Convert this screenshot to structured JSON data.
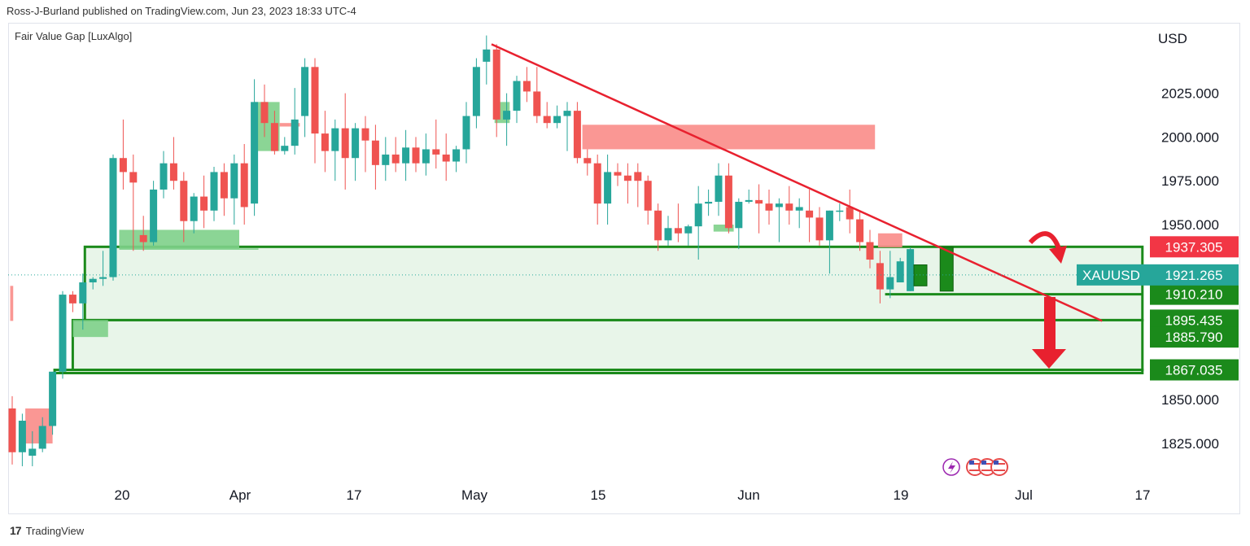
{
  "header": {
    "publisher_line": "Ross-J-Burland published on TradingView.com, Jun 23, 2023 18:33 UTC-4"
  },
  "indicator": {
    "label": "Fair Value Gap [LuxAlgo]"
  },
  "footer": {
    "brand": "TradingView"
  },
  "colors": {
    "up": "#26a69a",
    "down": "#ef5350",
    "trend": "#e8212f",
    "box": "#1b8a1b",
    "box_fill": "#e8f5e9",
    "fvg_up": "#7ed08a",
    "fvg_down": "#f98c88",
    "price_red": "#f23645",
    "price_green": "#1b8a1b",
    "xau_tag": "#26a69a"
  },
  "chart_data": {
    "type": "candlestick",
    "currency": "USD",
    "symbol": "XAUUSD",
    "last_price": "1921.265",
    "price_labels": [
      {
        "value": 1937.305,
        "text": "1937.305",
        "color": "red"
      },
      {
        "value": 1910.21,
        "text": "1910.210",
        "color": "green"
      },
      {
        "value": 1895.435,
        "text": "1895.435",
        "color": "green"
      },
      {
        "value": 1885.79,
        "text": "1885.790",
        "color": "green"
      },
      {
        "value": 1867.035,
        "text": "1867.035",
        "color": "green"
      }
    ],
    "y_ticks": [
      "1825.000",
      "1850.000",
      "1950.000",
      "1975.000",
      "2000.000",
      "2025.000"
    ],
    "y_tick_values": [
      1825,
      1850,
      1950,
      1975,
      2000,
      2025
    ],
    "x_ticks": [
      "20",
      "Apr",
      "17",
      "May",
      "15",
      "Jun",
      "19",
      "Jul",
      "17"
    ],
    "ohlc": [
      [
        1845,
        1852,
        1813,
        1820
      ],
      [
        1820,
        1842,
        1812,
        1838
      ],
      [
        1818,
        1832,
        1812,
        1822
      ],
      [
        1822,
        1840,
        1820,
        1835
      ],
      [
        1835,
        1865,
        1830,
        1866
      ],
      [
        1866,
        1912,
        1862,
        1910
      ],
      [
        1910,
        1912,
        1900,
        1905
      ],
      [
        1905,
        1922,
        1890,
        1917
      ],
      [
        1917,
        1920,
        1913,
        1919
      ],
      [
        1919,
        1935,
        1915,
        1920
      ],
      [
        1920,
        1990,
        1918,
        1988
      ],
      [
        1988,
        2010,
        1970,
        1980
      ],
      [
        1980,
        1990,
        1935,
        1974
      ],
      [
        1944,
        1955,
        1935,
        1940
      ],
      [
        1940,
        1975,
        1938,
        1970
      ],
      [
        1970,
        1992,
        1965,
        1985
      ],
      [
        1985,
        2000,
        1970,
        1975
      ],
      [
        1975,
        1980,
        1940,
        1952
      ],
      [
        1952,
        1968,
        1945,
        1966
      ],
      [
        1966,
        1978,
        1948,
        1958
      ],
      [
        1958,
        1983,
        1952,
        1980
      ],
      [
        1980,
        1985,
        1955,
        1965
      ],
      [
        1965,
        1990,
        1950,
        1985
      ],
      [
        1985,
        1996,
        1950,
        1960
      ],
      [
        1962,
        2033,
        1955,
        2020
      ],
      [
        2020,
        2030,
        2000,
        2008
      ],
      [
        2008,
        2015,
        1990,
        1992
      ],
      [
        1992,
        2000,
        1990,
        1995
      ],
      [
        1995,
        2028,
        1990,
        2010
      ],
      [
        2012,
        2045,
        2000,
        2040
      ],
      [
        2040,
        2045,
        1985,
        2002
      ],
      [
        2002,
        2015,
        1980,
        1992
      ],
      [
        1992,
        2010,
        1975,
        2005
      ],
      [
        2005,
        2025,
        1970,
        1988
      ],
      [
        1988,
        2008,
        1975,
        2005
      ],
      [
        2005,
        2012,
        1980,
        1998
      ],
      [
        1998,
        2007,
        1970,
        1984
      ],
      [
        1984,
        2000,
        1975,
        1990
      ],
      [
        1990,
        2000,
        1980,
        1985
      ],
      [
        1985,
        2004,
        1975,
        1994
      ],
      [
        1994,
        2000,
        1980,
        1985
      ],
      [
        1985,
        2002,
        1978,
        1993
      ],
      [
        1993,
        2010,
        1982,
        1990
      ],
      [
        1990,
        2002,
        1975,
        1986
      ],
      [
        1986,
        1995,
        1980,
        1993
      ],
      [
        1993,
        2020,
        1985,
        2012
      ],
      [
        2012,
        2045,
        2005,
        2040
      ],
      [
        2043,
        2058,
        2030,
        2050
      ],
      [
        2050,
        2053,
        2000,
        2010
      ],
      [
        2010,
        2025,
        1995,
        2015
      ],
      [
        2015,
        2035,
        2008,
        2032
      ],
      [
        2032,
        2040,
        2020,
        2026
      ],
      [
        2026,
        2040,
        2008,
        2012
      ],
      [
        2012,
        2020,
        2005,
        2008
      ],
      [
        2008,
        2018,
        2005,
        2012
      ],
      [
        2012,
        2020,
        1992,
        2015
      ],
      [
        2015,
        2020,
        1985,
        1988
      ],
      [
        1988,
        1993,
        1978,
        1985
      ],
      [
        1985,
        1990,
        1950,
        1962
      ],
      [
        1962,
        1990,
        1950,
        1980
      ],
      [
        1980,
        1985,
        1972,
        1978
      ],
      [
        1978,
        1985,
        1962,
        1975
      ],
      [
        1980,
        1985,
        1960,
        1975
      ],
      [
        1975,
        1978,
        1950,
        1958
      ],
      [
        1958,
        1962,
        1935,
        1941
      ],
      [
        1941,
        1955,
        1938,
        1948
      ],
      [
        1948,
        1962,
        1940,
        1945
      ],
      [
        1945,
        1950,
        1938,
        1949
      ],
      [
        1949,
        1972,
        1930,
        1962
      ],
      [
        1962,
        1970,
        1955,
        1963
      ],
      [
        1963,
        1985,
        1955,
        1978
      ],
      [
        1978,
        1985,
        1945,
        1948
      ],
      [
        1948,
        1965,
        1936,
        1963
      ],
      [
        1963,
        1970,
        1962,
        1964
      ],
      [
        1964,
        1973,
        1945,
        1962
      ],
      [
        1962,
        1970,
        1950,
        1958
      ],
      [
        1960,
        1965,
        1940,
        1962
      ],
      [
        1962,
        1972,
        1950,
        1958
      ],
      [
        1958,
        1965,
        1948,
        1960
      ],
      [
        1958,
        1970,
        1940,
        1954
      ],
      [
        1954,
        1960,
        1938,
        1941
      ],
      [
        1941,
        1958,
        1922,
        1958
      ],
      [
        1958,
        1962,
        1952,
        1958
      ],
      [
        1960,
        1970,
        1945,
        1953
      ],
      [
        1953,
        1958,
        1935,
        1940
      ],
      [
        1940,
        1947,
        1925,
        1930
      ],
      [
        1928,
        1935,
        1905,
        1913
      ],
      [
        1913,
        1935,
        1908,
        1920
      ],
      [
        1917,
        1931,
        1917,
        1929
      ],
      [
        1912,
        1937,
        1912,
        1936
      ]
    ],
    "trendline": {
      "from": {
        "bar": 47.5,
        "price": 2053
      },
      "to": {
        "bar": 108,
        "price": 1895
      }
    },
    "zones": [
      {
        "from_bar": 7.2,
        "to_bar": 112,
        "top": 1937.305,
        "bottom": 1895.435
      },
      {
        "from_bar": 6.0,
        "to_bar": 112,
        "top": 1895.435,
        "bottom": 1867.035
      },
      {
        "from_bar": 4.2,
        "to_bar": 112,
        "top": 1867.035,
        "bottom": 1865.2
      }
    ],
    "support_line": {
      "from_bar": 86.5,
      "to_bar": 112,
      "price": 1910.21
    },
    "fvgs_up": [
      {
        "from_bar": 10.6,
        "to_bar": 22.5,
        "top": 1947,
        "bottom": 1936
      },
      {
        "from_bar": 6.0,
        "to_bar": 9.5,
        "top": 1895.5,
        "bottom": 1885.8
      },
      {
        "from_bar": 24.0,
        "to_bar": 26.5,
        "top": 2020,
        "bottom": 1992
      },
      {
        "from_bar": 47.8,
        "to_bar": 49.3,
        "top": 2020,
        "bottom": 2008
      },
      {
        "from_bar": 69.5,
        "to_bar": 71.5,
        "top": 1950,
        "bottom": 1946
      }
    ],
    "fvgs_down": [
      {
        "from_bar": 56.5,
        "to_bar": 85.5,
        "top": 2007,
        "bottom": 1993
      },
      {
        "from_bar": 85.8,
        "to_bar": 88.2,
        "top": 1945,
        "bottom": 1937
      },
      {
        "from_bar": 1.3,
        "to_bar": 4.0,
        "top": 1845,
        "bottom": 1825
      },
      {
        "from_bar": 26.5,
        "to_bar": 28.5,
        "top": 2008,
        "bottom": 2006
      },
      {
        "from_bar": -0.2,
        "to_bar": 0.1,
        "top": 1915,
        "bottom": 1895
      }
    ],
    "projections": [
      {
        "bar": 90,
        "open": 1915,
        "close": 1927
      },
      {
        "bar": 92.6,
        "open": 1912,
        "close": 1937
      }
    ],
    "annotations": [
      "curved-arrow-down",
      "arrow-down"
    ]
  }
}
